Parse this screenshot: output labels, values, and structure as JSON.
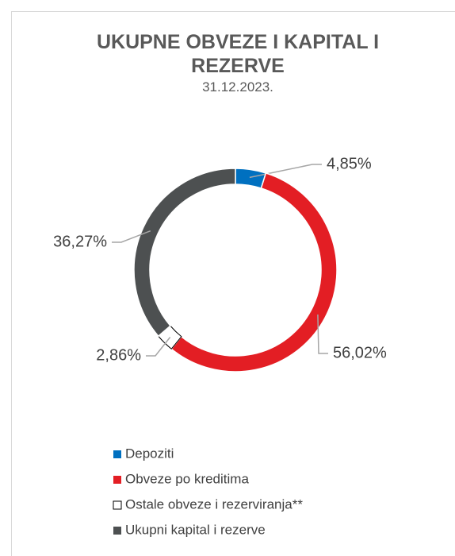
{
  "chart_data": {
    "type": "donut",
    "title": "UKUPNE OBVEZE I KAPITAL I REZERVE",
    "subtitle": "31.12.2023.",
    "categories": [
      "Depoziti",
      "Obveze po kreditima",
      "Ostale obveze i rezerviranja**",
      "Ukupni kapital i rezerve"
    ],
    "values": [
      4.85,
      56.02,
      2.86,
      36.27
    ],
    "value_labels": [
      "4,85%",
      "56,02%",
      "2,86%",
      "36,27%"
    ],
    "colors": [
      "#0070c0",
      "#e31e24",
      "#ffffff",
      "#4d5051"
    ],
    "legend": "bottom"
  }
}
